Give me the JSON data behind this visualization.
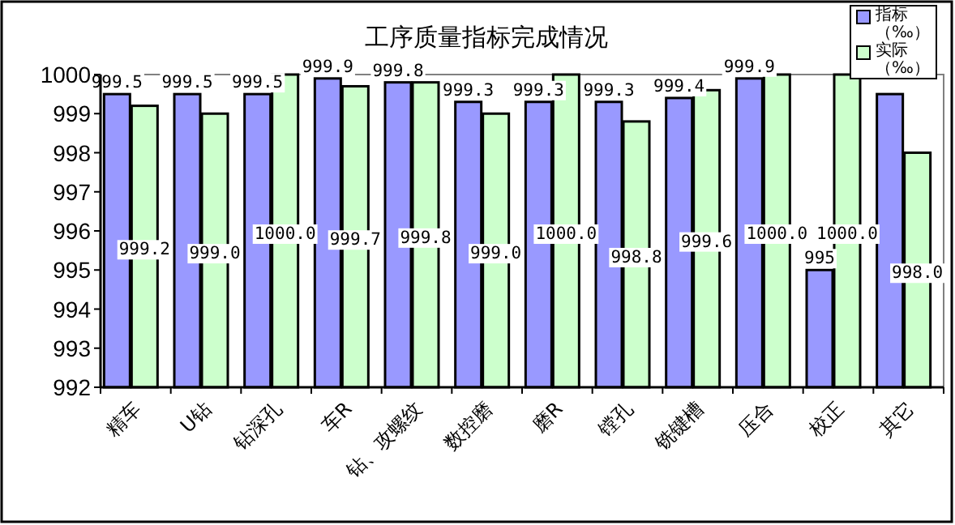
{
  "chart_data": {
    "type": "bar",
    "title": "工序质量指标完成情况",
    "categories": [
      "精车",
      "U钻",
      "钻深孔",
      "车R",
      "钻、攻螺纹",
      "数控磨",
      "磨R",
      "镗孔",
      "铣键槽",
      "压合",
      "校正",
      "其它"
    ],
    "series": [
      {
        "name": "指标（‰）",
        "color": "#9999ff",
        "values": [
          999.5,
          999.5,
          999.5,
          999.9,
          999.8,
          999.3,
          999.3,
          999.3,
          999.4,
          999.9,
          995,
          999.5
        ],
        "value_labels": [
          "999.5",
          "999.5",
          "999.5",
          "999.9",
          "999.8",
          "999.3",
          "999.3",
          "999.3",
          "999.4",
          "999.9",
          "995",
          null
        ]
      },
      {
        "name": "实际（‰）",
        "color": "#ccffcc",
        "values": [
          999.2,
          999.0,
          1000.0,
          999.7,
          999.8,
          999.0,
          1000.0,
          998.8,
          999.6,
          1000.0,
          1000.0,
          998.0
        ],
        "value_labels": [
          "999.2",
          "999.0",
          "1000.0",
          "999.7",
          "999.8",
          "999.0",
          "1000.0",
          "998.8",
          "999.6",
          "1000.0",
          "1000.0",
          "998.0"
        ]
      }
    ],
    "ylim": [
      992,
      1000
    ],
    "yticks": [
      992,
      993,
      994,
      995,
      996,
      997,
      998,
      999,
      1000
    ],
    "grid": false,
    "legend": "top right"
  }
}
